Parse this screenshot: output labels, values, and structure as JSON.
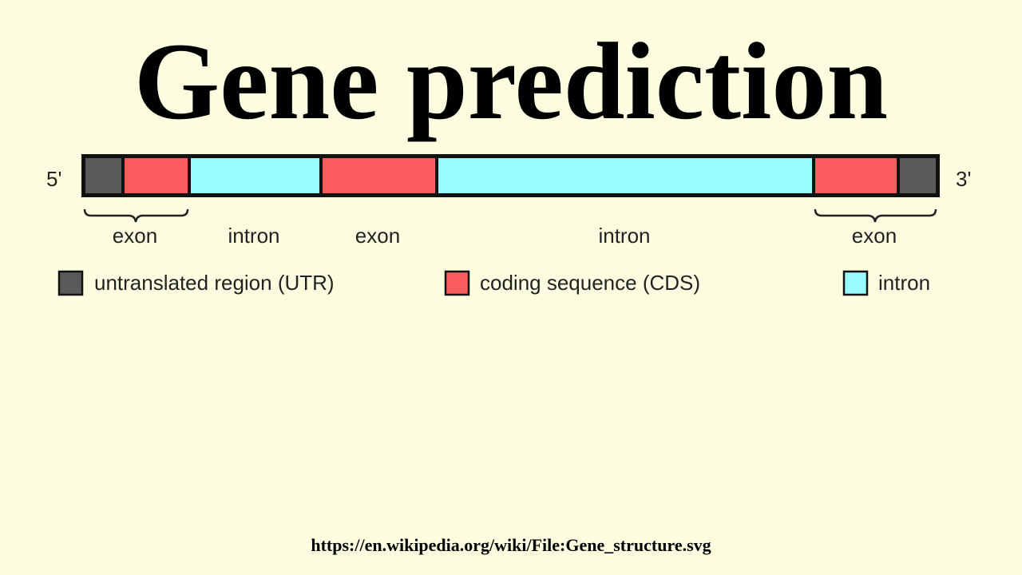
{
  "title": "Gene prediction",
  "ends": {
    "five_prime": "5'",
    "three_prime": "3'"
  },
  "segments": [
    {
      "type": "utr"
    },
    {
      "type": "cds"
    },
    {
      "type": "intron"
    },
    {
      "type": "cds"
    },
    {
      "type": "intron"
    },
    {
      "type": "cds"
    },
    {
      "type": "utr"
    }
  ],
  "region_labels": {
    "exon_1": "exon",
    "intron_1": "intron",
    "exon_2": "exon",
    "intron_2": "intron",
    "exon_3": "exon"
  },
  "legend": {
    "utr": "untranslated region (UTR)",
    "cds": "coding sequence (CDS)",
    "intron": "intron"
  },
  "colors": {
    "utr": "#5a5a5a",
    "cds": "#fb5c5e",
    "intron": "#99fbfd",
    "outline": "#111111",
    "background": "#fdfde0"
  },
  "footer": "https://en.wikipedia.org/wiki/File:Gene_structure.svg"
}
